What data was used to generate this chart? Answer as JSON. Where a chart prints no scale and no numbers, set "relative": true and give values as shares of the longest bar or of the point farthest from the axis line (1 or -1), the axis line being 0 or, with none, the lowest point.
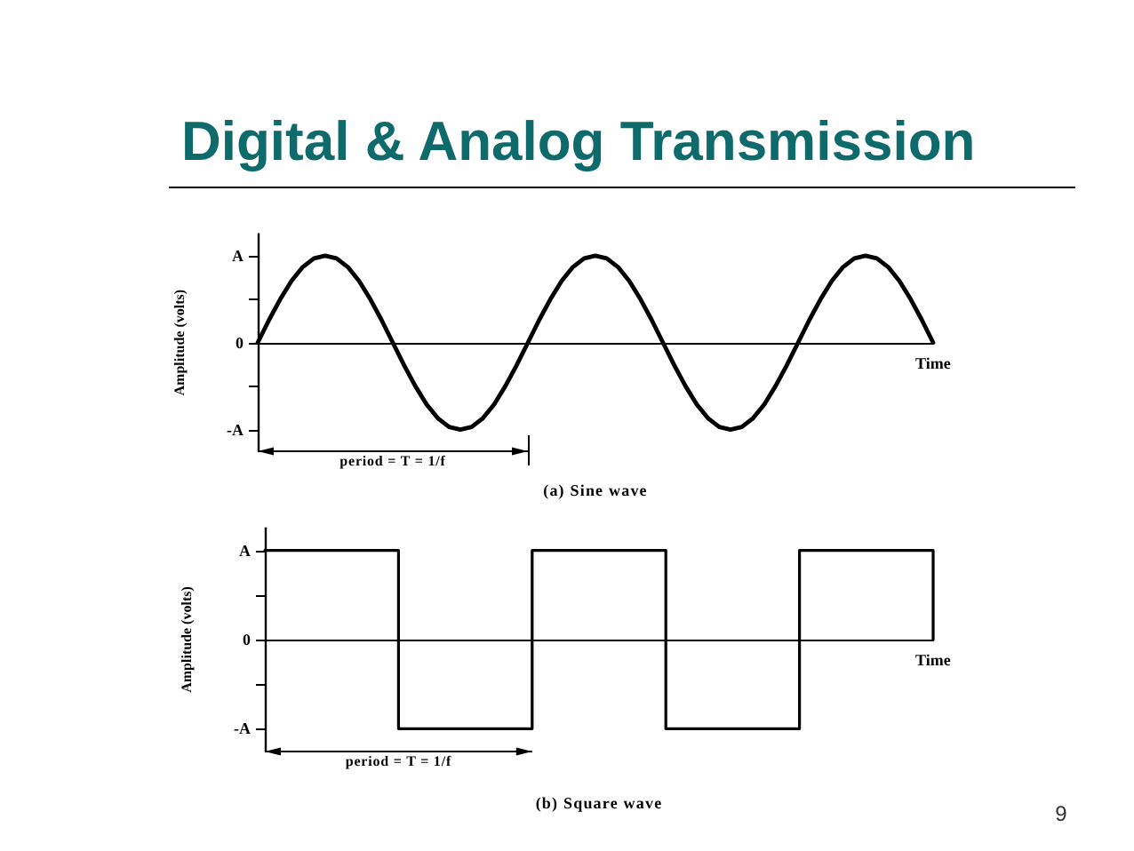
{
  "chart_data": [
    {
      "type": "line",
      "title": "Digital & Analog Transmission",
      "xlabel": "Time",
      "ylabel": "Amplitude (volts)",
      "annotations": [
        "A",
        "0",
        "-A",
        "period = T = 1/f",
        "(a) Sine wave"
      ],
      "categories": [
        null,
        null,
        null,
        null,
        null,
        null,
        null,
        null,
        null,
        null,
        null,
        null,
        null,
        null,
        null,
        null,
        null,
        null,
        null,
        null,
        null,
        null,
        null,
        null,
        null,
        null,
        null,
        null,
        null,
        null,
        null,
        null,
        null,
        null,
        null,
        null,
        null,
        null,
        null,
        null,
        null,
        null,
        null,
        null,
        null,
        null,
        null,
        null,
        null,
        null,
        null,
        null,
        null,
        null,
        null,
        null,
        null,
        null,
        null,
        null,
        null
      ],
      "values": [
        0,
        0.26,
        0.5,
        0.71,
        0.87,
        0.97,
        1,
        0.97,
        0.87,
        0.71,
        0.5,
        0.26,
        0,
        -0.26,
        -0.5,
        -0.71,
        -0.87,
        -0.97,
        -1,
        -0.97,
        -0.87,
        -0.71,
        -0.5,
        -0.26,
        0,
        0.26,
        0.5,
        0.71,
        0.87,
        0.97,
        1,
        0.97,
        0.87,
        0.71,
        0.5,
        0.26,
        0,
        -0.26,
        -0.5,
        -0.71,
        -0.87,
        -0.97,
        -1,
        -0.97,
        -0.87,
        -0.71,
        -0.5,
        -0.26,
        0,
        0.26,
        0.5,
        0.71,
        0.87,
        0.97,
        1,
        0.97,
        0.87,
        0.71,
        0.5,
        0.26,
        0
      ],
      "color": "#000000",
      "relative": true,
      "marker": "none",
      "line_style": "solid"
    },
    {
      "type": "step",
      "xlabel": "Time",
      "ylabel": "Amplitude (volts)",
      "annotations": [
        "A",
        "0",
        "-A",
        "period = T = 1/f",
        "(b) Square wave",
        "9"
      ],
      "categories": [
        null,
        null,
        null,
        null,
        null,
        null
      ],
      "values": [
        1,
        -1,
        1,
        -1,
        1,
        0
      ],
      "color": "#000000",
      "relative": true,
      "marker": "none",
      "line_style": "solid"
    }
  ]
}
